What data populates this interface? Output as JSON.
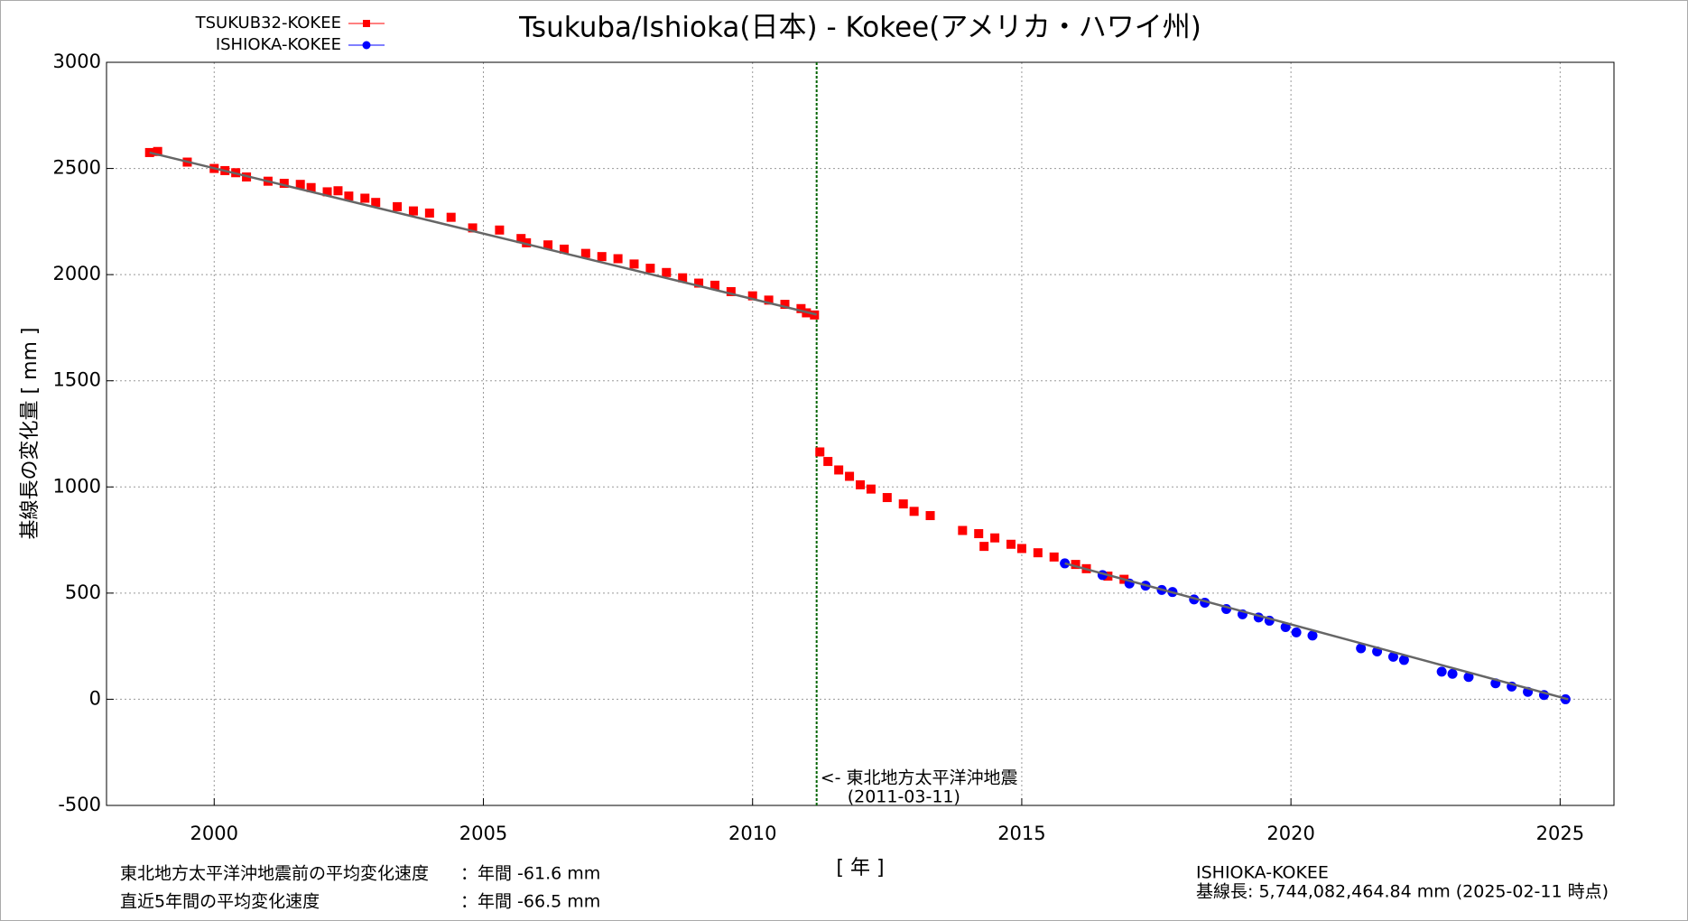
{
  "chart_data": {
    "type": "scatter",
    "title": "Tsukuba/Ishioka(日本) - Kokee(アメリカ・ハワイ州)",
    "xlabel": "[ 年 ]",
    "ylabel": "基線長の変化量 [ mm ]",
    "xlim": [
      1998,
      2026
    ],
    "xticks": [
      2000,
      2005,
      2010,
      2015,
      2020,
      2025
    ],
    "ylim": [
      -500,
      3000
    ],
    "yticks": [
      -500,
      0,
      500,
      1000,
      1500,
      2000,
      2500,
      3000
    ],
    "grid": true,
    "legend": "top-left",
    "series": [
      {
        "name": "TSUKUB32-KOKEE",
        "color": "#ff0000",
        "marker": "square",
        "x": [
          1998.8,
          1998.95,
          1999.5,
          2000.0,
          2000.2,
          2000.4,
          2000.6,
          2001.0,
          2001.3,
          2001.6,
          2001.8,
          2002.1,
          2002.3,
          2002.5,
          2002.8,
          2003.0,
          2003.4,
          2003.7,
          2004.0,
          2004.4,
          2004.8,
          2005.3,
          2005.7,
          2005.8,
          2006.2,
          2006.5,
          2006.9,
          2007.2,
          2007.5,
          2007.8,
          2008.1,
          2008.4,
          2008.7,
          2009.0,
          2009.3,
          2009.6,
          2010.0,
          2010.3,
          2010.6,
          2010.9,
          2011.0,
          2011.15,
          2011.25,
          2011.4,
          2011.6,
          2011.8,
          2012.0,
          2012.2,
          2012.5,
          2012.8,
          2013.0,
          2013.3,
          2013.9,
          2014.2,
          2014.3,
          2014.5,
          2014.8,
          2015.0,
          2015.3,
          2015.6,
          2016.0,
          2016.2,
          2016.6,
          2016.9
        ],
        "values": [
          2575,
          2580,
          2530,
          2500,
          2490,
          2480,
          2460,
          2440,
          2430,
          2425,
          2410,
          2390,
          2395,
          2370,
          2360,
          2340,
          2320,
          2300,
          2290,
          2270,
          2220,
          2210,
          2170,
          2150,
          2140,
          2120,
          2100,
          2085,
          2075,
          2050,
          2030,
          2010,
          1985,
          1960,
          1950,
          1920,
          1900,
          1880,
          1860,
          1840,
          1820,
          1810,
          1165,
          1120,
          1080,
          1050,
          1010,
          990,
          950,
          920,
          885,
          865,
          795,
          780,
          720,
          760,
          730,
          710,
          690,
          670,
          635,
          615,
          580,
          565
        ]
      },
      {
        "name": "ISHIOKA-KOKEE",
        "color": "#0000ff",
        "marker": "circle",
        "x": [
          2015.8,
          2016.5,
          2017.0,
          2017.3,
          2017.6,
          2017.8,
          2018.2,
          2018.4,
          2018.8,
          2019.1,
          2019.4,
          2019.6,
          2019.9,
          2020.1,
          2020.4,
          2021.3,
          2021.6,
          2021.9,
          2022.1,
          2022.8,
          2023.0,
          2023.3,
          2023.8,
          2024.1,
          2024.4,
          2024.7,
          2025.1
        ],
        "values": [
          640,
          585,
          545,
          535,
          515,
          505,
          470,
          455,
          425,
          400,
          385,
          370,
          340,
          315,
          300,
          240,
          225,
          200,
          185,
          130,
          120,
          105,
          75,
          60,
          35,
          20,
          0
        ]
      }
    ],
    "trend_lines": [
      {
        "color": "#666666",
        "x": [
          1998.8,
          2011.19
        ],
        "values": [
          2575,
          1812
        ]
      },
      {
        "color": "#666666",
        "x": [
          2015.8,
          2025.15
        ],
        "values": [
          640,
          0
        ]
      }
    ],
    "event_x": 2011.19,
    "event_color": "#006400",
    "annotation": [
      "<- 東北地方太平洋沖地震",
      "(2011-03-11)"
    ],
    "notes": [
      [
        "東北地方太平洋沖地震前の平均変化速度",
        "：年間 -61.6 mm"
      ],
      [
        "直近5年間の平均変化速度",
        "：年間 -66.5 mm"
      ]
    ],
    "baseline_info": [
      "ISHIOKA-KOKEE",
      "基線長: 5,744,082,464.84 mm (2025-02-11 時点)"
    ]
  }
}
